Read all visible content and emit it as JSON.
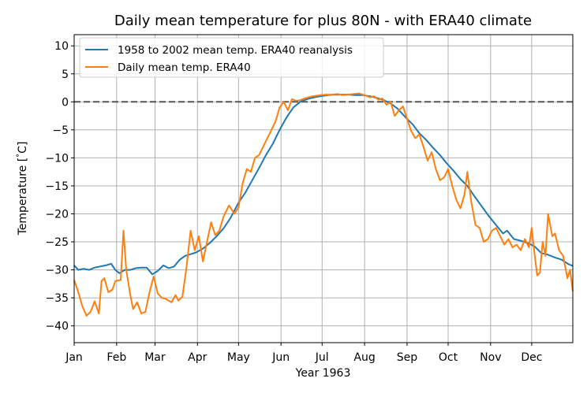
{
  "chart_data": {
    "type": "line",
    "title": "Daily mean temperature for plus 80N - with ERA40 climate",
    "xlabel": "Year 1963",
    "ylabel": "Temperature [$^\\circ$C]",
    "ylabel_text": "Temperature [",
    "ylabel_degree": "°",
    "ylabel_unit": "C]",
    "xlim": [
      "1963-01-01",
      "1963-12-31"
    ],
    "ylim": [
      -43,
      12
    ],
    "grid": true,
    "legend_position": "upper-left",
    "reference_line": {
      "y": 0,
      "style": "dashed",
      "color": "#555555"
    },
    "x_ticks": [
      {
        "date": "1963-01-01",
        "label": "Jan"
      },
      {
        "date": "1963-02-01",
        "label": "Feb"
      },
      {
        "date": "1963-03-01",
        "label": "Mar"
      },
      {
        "date": "1963-04-01",
        "label": "Apr"
      },
      {
        "date": "1963-05-01",
        "label": "May"
      },
      {
        "date": "1963-06-01",
        "label": "Jun"
      },
      {
        "date": "1963-07-01",
        "label": "Jul"
      },
      {
        "date": "1963-08-01",
        "label": "Aug"
      },
      {
        "date": "1963-09-01",
        "label": "Sep"
      },
      {
        "date": "1963-10-01",
        "label": "Oct"
      },
      {
        "date": "1963-11-01",
        "label": "Nov"
      },
      {
        "date": "1963-12-01",
        "label": "Dec"
      }
    ],
    "y_ticks": [
      10,
      5,
      0,
      -5,
      -10,
      -15,
      -20,
      -25,
      -30,
      -35,
      -40
    ],
    "series": [
      {
        "name": "1958 to 2002 mean temp. ERA40 reanalysis",
        "color": "#1f77b4",
        "points": [
          [
            "1963-01-01",
            -29.2
          ],
          [
            "1963-01-04",
            -30.0
          ],
          [
            "1963-01-08",
            -29.8
          ],
          [
            "1963-01-12",
            -30.0
          ],
          [
            "1963-01-16",
            -29.6
          ],
          [
            "1963-01-20",
            -29.4
          ],
          [
            "1963-01-24",
            -29.2
          ],
          [
            "1963-01-28",
            -28.9
          ],
          [
            "1963-01-31",
            -30.0
          ],
          [
            "1963-02-03",
            -30.6
          ],
          [
            "1963-02-07",
            -30.0
          ],
          [
            "1963-02-11",
            -30.0
          ],
          [
            "1963-02-15",
            -29.7
          ],
          [
            "1963-02-19",
            -29.6
          ],
          [
            "1963-02-23",
            -29.6
          ],
          [
            "1963-02-27",
            -30.8
          ],
          [
            "1963-03-03",
            -30.2
          ],
          [
            "1963-03-07",
            -29.2
          ],
          [
            "1963-03-11",
            -29.7
          ],
          [
            "1963-03-15",
            -29.4
          ],
          [
            "1963-03-19",
            -28.2
          ],
          [
            "1963-03-23",
            -27.5
          ],
          [
            "1963-03-27",
            -27.2
          ],
          [
            "1963-03-31",
            -26.9
          ],
          [
            "1963-04-05",
            -26.2
          ],
          [
            "1963-04-10",
            -25.2
          ],
          [
            "1963-04-15",
            -24.0
          ],
          [
            "1963-04-20",
            -22.6
          ],
          [
            "1963-04-25",
            -20.8
          ],
          [
            "1963-05-01",
            -18.0
          ],
          [
            "1963-05-06",
            -16.2
          ],
          [
            "1963-05-11",
            -14.0
          ],
          [
            "1963-05-16",
            -11.8
          ],
          [
            "1963-05-21",
            -9.5
          ],
          [
            "1963-05-26",
            -7.5
          ],
          [
            "1963-05-31",
            -5.0
          ],
          [
            "1963-06-05",
            -2.8
          ],
          [
            "1963-06-10",
            -1.0
          ],
          [
            "1963-06-15",
            0.0
          ],
          [
            "1963-06-20",
            0.5
          ],
          [
            "1963-06-25",
            0.8
          ],
          [
            "1963-06-30",
            1.0
          ],
          [
            "1963-07-05",
            1.2
          ],
          [
            "1963-07-10",
            1.3
          ],
          [
            "1963-07-15",
            1.3
          ],
          [
            "1963-07-20",
            1.3
          ],
          [
            "1963-07-25",
            1.2
          ],
          [
            "1963-07-31",
            1.2
          ],
          [
            "1963-08-05",
            1.0
          ],
          [
            "1963-08-10",
            0.7
          ],
          [
            "1963-08-15",
            0.3
          ],
          [
            "1963-08-20",
            -0.3
          ],
          [
            "1963-08-25",
            -1.2
          ],
          [
            "1963-08-31",
            -2.8
          ],
          [
            "1963-09-05",
            -4.0
          ],
          [
            "1963-09-10",
            -5.6
          ],
          [
            "1963-09-15",
            -6.8
          ],
          [
            "1963-09-20",
            -8.2
          ],
          [
            "1963-09-25",
            -9.5
          ],
          [
            "1963-09-30",
            -11.0
          ],
          [
            "1963-10-05",
            -12.3
          ],
          [
            "1963-10-10",
            -13.8
          ],
          [
            "1963-10-15",
            -15.0
          ],
          [
            "1963-10-20",
            -16.8
          ],
          [
            "1963-10-25",
            -18.5
          ],
          [
            "1963-10-31",
            -20.5
          ],
          [
            "1963-11-05",
            -22.0
          ],
          [
            "1963-11-10",
            -23.5
          ],
          [
            "1963-11-13",
            -23.0
          ],
          [
            "1963-11-18",
            -24.5
          ],
          [
            "1963-11-23",
            -24.8
          ],
          [
            "1963-11-28",
            -25.2
          ],
          [
            "1963-12-03",
            -25.8
          ],
          [
            "1963-12-08",
            -27.0
          ],
          [
            "1963-12-13",
            -27.3
          ],
          [
            "1963-12-18",
            -27.8
          ],
          [
            "1963-12-23",
            -28.2
          ],
          [
            "1963-12-28",
            -29.0
          ],
          [
            "1963-12-31",
            -29.3
          ]
        ]
      },
      {
        "name": "Daily mean temp. ERA40",
        "color": "#ff7f0e",
        "points": [
          [
            "1963-01-01",
            -31.8
          ],
          [
            "1963-01-04",
            -34.0
          ],
          [
            "1963-01-07",
            -36.5
          ],
          [
            "1963-01-10",
            -38.2
          ],
          [
            "1963-01-13",
            -37.5
          ],
          [
            "1963-01-16",
            -35.6
          ],
          [
            "1963-01-19",
            -37.8
          ],
          [
            "1963-01-21",
            -32.0
          ],
          [
            "1963-01-23",
            -31.5
          ],
          [
            "1963-01-26",
            -34.0
          ],
          [
            "1963-01-29",
            -33.5
          ],
          [
            "1963-01-31",
            -32.0
          ],
          [
            "1963-02-04",
            -31.8
          ],
          [
            "1963-02-06",
            -23.0
          ],
          [
            "1963-02-08",
            -30.0
          ],
          [
            "1963-02-11",
            -34.5
          ],
          [
            "1963-02-13",
            -37.0
          ],
          [
            "1963-02-16",
            -35.8
          ],
          [
            "1963-02-19",
            -37.8
          ],
          [
            "1963-02-22",
            -37.5
          ],
          [
            "1963-02-25",
            -34.0
          ],
          [
            "1963-02-28",
            -31.2
          ],
          [
            "1963-03-03",
            -34.2
          ],
          [
            "1963-03-06",
            -35.0
          ],
          [
            "1963-03-09",
            -35.2
          ],
          [
            "1963-03-13",
            -35.8
          ],
          [
            "1963-03-16",
            -34.5
          ],
          [
            "1963-03-18",
            -35.5
          ],
          [
            "1963-03-21",
            -34.8
          ],
          [
            "1963-03-24",
            -29.5
          ],
          [
            "1963-03-27",
            -23.0
          ],
          [
            "1963-03-30",
            -26.5
          ],
          [
            "1963-04-02",
            -24.0
          ],
          [
            "1963-04-05",
            -28.5
          ],
          [
            "1963-04-08",
            -25.0
          ],
          [
            "1963-04-11",
            -21.5
          ],
          [
            "1963-04-14",
            -23.8
          ],
          [
            "1963-04-17",
            -23.0
          ],
          [
            "1963-04-20",
            -20.5
          ],
          [
            "1963-04-24",
            -18.5
          ],
          [
            "1963-04-28",
            -20.0
          ],
          [
            "1963-05-01",
            -18.8
          ],
          [
            "1963-05-04",
            -14.5
          ],
          [
            "1963-05-07",
            -12.0
          ],
          [
            "1963-05-10",
            -12.5
          ],
          [
            "1963-05-13",
            -10.0
          ],
          [
            "1963-05-16",
            -9.5
          ],
          [
            "1963-05-19",
            -8.0
          ],
          [
            "1963-05-22",
            -6.5
          ],
          [
            "1963-05-25",
            -5.0
          ],
          [
            "1963-05-28",
            -3.5
          ],
          [
            "1963-05-31",
            -1.0
          ],
          [
            "1963-06-03",
            0.0
          ],
          [
            "1963-06-06",
            -1.5
          ],
          [
            "1963-06-09",
            0.5
          ],
          [
            "1963-06-12",
            0.2
          ],
          [
            "1963-06-15",
            0.3
          ],
          [
            "1963-06-18",
            0.6
          ],
          [
            "1963-06-21",
            0.8
          ],
          [
            "1963-06-24",
            1.0
          ],
          [
            "1963-06-27",
            1.1
          ],
          [
            "1963-06-30",
            1.2
          ],
          [
            "1963-07-04",
            1.3
          ],
          [
            "1963-07-08",
            1.3
          ],
          [
            "1963-07-12",
            1.4
          ],
          [
            "1963-07-16",
            1.2
          ],
          [
            "1963-07-20",
            1.3
          ],
          [
            "1963-07-24",
            1.4
          ],
          [
            "1963-07-28",
            1.5
          ],
          [
            "1963-08-01",
            1.2
          ],
          [
            "1963-08-05",
            0.8
          ],
          [
            "1963-08-08",
            1.0
          ],
          [
            "1963-08-11",
            0.4
          ],
          [
            "1963-08-14",
            0.6
          ],
          [
            "1963-08-17",
            -0.5
          ],
          [
            "1963-08-20",
            0.0
          ],
          [
            "1963-08-23",
            -2.5
          ],
          [
            "1963-08-26",
            -1.5
          ],
          [
            "1963-08-29",
            -0.8
          ],
          [
            "1963-09-01",
            -3.0
          ],
          [
            "1963-09-04",
            -5.2
          ],
          [
            "1963-09-07",
            -6.5
          ],
          [
            "1963-09-10",
            -5.8
          ],
          [
            "1963-09-13",
            -8.0
          ],
          [
            "1963-09-16",
            -10.5
          ],
          [
            "1963-09-19",
            -9.0
          ],
          [
            "1963-09-22",
            -12.0
          ],
          [
            "1963-09-25",
            -14.0
          ],
          [
            "1963-09-28",
            -13.5
          ],
          [
            "1963-10-01",
            -12.0
          ],
          [
            "1963-10-04",
            -15.0
          ],
          [
            "1963-10-07",
            -17.5
          ],
          [
            "1963-10-10",
            -19.0
          ],
          [
            "1963-10-13",
            -16.5
          ],
          [
            "1963-10-15",
            -12.5
          ],
          [
            "1963-10-18",
            -18.0
          ],
          [
            "1963-10-21",
            -22.0
          ],
          [
            "1963-10-24",
            -22.5
          ],
          [
            "1963-10-27",
            -25.0
          ],
          [
            "1963-10-30",
            -24.5
          ],
          [
            "1963-11-02",
            -23.0
          ],
          [
            "1963-11-05",
            -22.5
          ],
          [
            "1963-11-08",
            -24.0
          ],
          [
            "1963-11-11",
            -25.5
          ],
          [
            "1963-11-14",
            -24.5
          ],
          [
            "1963-11-17",
            -26.0
          ],
          [
            "1963-11-20",
            -25.5
          ],
          [
            "1963-11-23",
            -26.5
          ],
          [
            "1963-11-26",
            -24.5
          ],
          [
            "1963-11-29",
            -26.0
          ],
          [
            "1963-12-01",
            -22.5
          ],
          [
            "1963-12-03",
            -27.0
          ],
          [
            "1963-12-05",
            -31.0
          ],
          [
            "1963-12-07",
            -30.5
          ],
          [
            "1963-12-09",
            -25.0
          ],
          [
            "1963-12-11",
            -27.5
          ],
          [
            "1963-12-13",
            -20.0
          ],
          [
            "1963-12-16",
            -24.0
          ],
          [
            "1963-12-18",
            -23.5
          ],
          [
            "1963-12-21",
            -26.5
          ],
          [
            "1963-12-24",
            -27.5
          ],
          [
            "1963-12-27",
            -31.5
          ],
          [
            "1963-12-29",
            -30.0
          ],
          [
            "1963-12-31",
            -33.8
          ]
        ]
      }
    ]
  }
}
